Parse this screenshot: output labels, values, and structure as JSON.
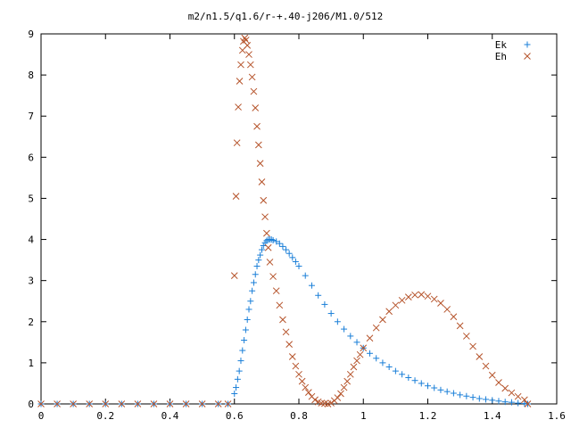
{
  "chart_data": {
    "type": "scatter",
    "title": "m2/n1.5/q1.6/r-+.40-j206/M1.0/512",
    "xlim": [
      0,
      1.6
    ],
    "ylim": [
      0,
      9
    ],
    "x_ticks": [
      "0",
      "0.2",
      "0.4",
      "0.6",
      "0.8",
      "1",
      "1.2",
      "1.4",
      "1.6"
    ],
    "y_ticks": [
      "0",
      "1",
      "2",
      "3",
      "4",
      "5",
      "6",
      "7",
      "8",
      "9"
    ],
    "grid": false,
    "legend_position": "top-right",
    "series": [
      {
        "name": "Ek",
        "marker": "plus",
        "color": "#1a7fd8",
        "points": [
          [
            0.0,
            0
          ],
          [
            0.05,
            0
          ],
          [
            0.1,
            0
          ],
          [
            0.15,
            0
          ],
          [
            0.2,
            0
          ],
          [
            0.25,
            0
          ],
          [
            0.3,
            0
          ],
          [
            0.35,
            0
          ],
          [
            0.4,
            0
          ],
          [
            0.45,
            0
          ],
          [
            0.5,
            0
          ],
          [
            0.55,
            0
          ],
          [
            0.58,
            0
          ],
          [
            0.6,
            0.25
          ],
          [
            0.605,
            0.4
          ],
          [
            0.61,
            0.6
          ],
          [
            0.615,
            0.8
          ],
          [
            0.62,
            1.05
          ],
          [
            0.625,
            1.3
          ],
          [
            0.63,
            1.55
          ],
          [
            0.635,
            1.8
          ],
          [
            0.64,
            2.05
          ],
          [
            0.645,
            2.3
          ],
          [
            0.65,
            2.5
          ],
          [
            0.655,
            2.75
          ],
          [
            0.66,
            2.95
          ],
          [
            0.665,
            3.15
          ],
          [
            0.67,
            3.35
          ],
          [
            0.675,
            3.5
          ],
          [
            0.68,
            3.62
          ],
          [
            0.685,
            3.75
          ],
          [
            0.69,
            3.85
          ],
          [
            0.695,
            3.92
          ],
          [
            0.7,
            3.97
          ],
          [
            0.705,
            4.0
          ],
          [
            0.71,
            4.0
          ],
          [
            0.715,
            4.0
          ],
          [
            0.72,
            3.98
          ],
          [
            0.73,
            3.95
          ],
          [
            0.74,
            3.9
          ],
          [
            0.75,
            3.83
          ],
          [
            0.76,
            3.75
          ],
          [
            0.77,
            3.66
          ],
          [
            0.78,
            3.56
          ],
          [
            0.79,
            3.46
          ],
          [
            0.8,
            3.35
          ],
          [
            0.82,
            3.12
          ],
          [
            0.84,
            2.88
          ],
          [
            0.86,
            2.64
          ],
          [
            0.88,
            2.42
          ],
          [
            0.9,
            2.2
          ],
          [
            0.92,
            2.0
          ],
          [
            0.94,
            1.82
          ],
          [
            0.96,
            1.65
          ],
          [
            0.98,
            1.5
          ],
          [
            1.0,
            1.36
          ],
          [
            1.02,
            1.23
          ],
          [
            1.04,
            1.11
          ],
          [
            1.06,
            1.0
          ],
          [
            1.08,
            0.9
          ],
          [
            1.1,
            0.8
          ],
          [
            1.12,
            0.72
          ],
          [
            1.14,
            0.64
          ],
          [
            1.16,
            0.57
          ],
          [
            1.18,
            0.5
          ],
          [
            1.2,
            0.44
          ],
          [
            1.22,
            0.39
          ],
          [
            1.24,
            0.34
          ],
          [
            1.26,
            0.3
          ],
          [
            1.28,
            0.26
          ],
          [
            1.3,
            0.22
          ],
          [
            1.32,
            0.19
          ],
          [
            1.34,
            0.16
          ],
          [
            1.36,
            0.13
          ],
          [
            1.38,
            0.11
          ],
          [
            1.4,
            0.09
          ],
          [
            1.42,
            0.07
          ],
          [
            1.44,
            0.05
          ],
          [
            1.46,
            0.04
          ],
          [
            1.48,
            0.02
          ],
          [
            1.5,
            0.01
          ],
          [
            1.51,
            0.0
          ]
        ]
      },
      {
        "name": "Eh",
        "marker": "cross",
        "color": "#b5532a",
        "points": [
          [
            0.0,
            0
          ],
          [
            0.05,
            0
          ],
          [
            0.1,
            0
          ],
          [
            0.15,
            0
          ],
          [
            0.2,
            0
          ],
          [
            0.25,
            0
          ],
          [
            0.3,
            0
          ],
          [
            0.35,
            0
          ],
          [
            0.4,
            0
          ],
          [
            0.45,
            0
          ],
          [
            0.5,
            0
          ],
          [
            0.55,
            0
          ],
          [
            0.58,
            0
          ],
          [
            0.6,
            3.12
          ],
          [
            0.605,
            5.05
          ],
          [
            0.608,
            6.35
          ],
          [
            0.612,
            7.22
          ],
          [
            0.616,
            7.85
          ],
          [
            0.62,
            8.25
          ],
          [
            0.625,
            8.6
          ],
          [
            0.628,
            8.82
          ],
          [
            0.632,
            8.9
          ],
          [
            0.636,
            8.85
          ],
          [
            0.64,
            8.72
          ],
          [
            0.645,
            8.5
          ],
          [
            0.65,
            8.25
          ],
          [
            0.655,
            7.95
          ],
          [
            0.66,
            7.6
          ],
          [
            0.665,
            7.2
          ],
          [
            0.67,
            6.75
          ],
          [
            0.675,
            6.3
          ],
          [
            0.68,
            5.85
          ],
          [
            0.685,
            5.4
          ],
          [
            0.69,
            4.95
          ],
          [
            0.695,
            4.55
          ],
          [
            0.7,
            4.15
          ],
          [
            0.705,
            3.8
          ],
          [
            0.71,
            3.45
          ],
          [
            0.72,
            3.1
          ],
          [
            0.73,
            2.75
          ],
          [
            0.74,
            2.4
          ],
          [
            0.75,
            2.05
          ],
          [
            0.76,
            1.75
          ],
          [
            0.77,
            1.45
          ],
          [
            0.78,
            1.15
          ],
          [
            0.79,
            0.92
          ],
          [
            0.8,
            0.72
          ],
          [
            0.81,
            0.55
          ],
          [
            0.82,
            0.4
          ],
          [
            0.83,
            0.28
          ],
          [
            0.84,
            0.18
          ],
          [
            0.85,
            0.1
          ],
          [
            0.86,
            0.05
          ],
          [
            0.87,
            0.02
          ],
          [
            0.88,
            0.01
          ],
          [
            0.89,
            0.0
          ],
          [
            0.9,
            0.02
          ],
          [
            0.91,
            0.08
          ],
          [
            0.92,
            0.15
          ],
          [
            0.93,
            0.25
          ],
          [
            0.94,
            0.4
          ],
          [
            0.95,
            0.55
          ],
          [
            0.96,
            0.72
          ],
          [
            0.97,
            0.9
          ],
          [
            0.98,
            1.05
          ],
          [
            0.99,
            1.2
          ],
          [
            1.0,
            1.36
          ],
          [
            1.02,
            1.6
          ],
          [
            1.04,
            1.85
          ],
          [
            1.06,
            2.05
          ],
          [
            1.08,
            2.25
          ],
          [
            1.1,
            2.4
          ],
          [
            1.12,
            2.52
          ],
          [
            1.14,
            2.6
          ],
          [
            1.16,
            2.65
          ],
          [
            1.18,
            2.66
          ],
          [
            1.2,
            2.62
          ],
          [
            1.22,
            2.55
          ],
          [
            1.24,
            2.45
          ],
          [
            1.26,
            2.3
          ],
          [
            1.28,
            2.12
          ],
          [
            1.3,
            1.9
          ],
          [
            1.32,
            1.65
          ],
          [
            1.34,
            1.4
          ],
          [
            1.36,
            1.15
          ],
          [
            1.38,
            0.92
          ],
          [
            1.4,
            0.7
          ],
          [
            1.42,
            0.52
          ],
          [
            1.44,
            0.38
          ],
          [
            1.46,
            0.27
          ],
          [
            1.48,
            0.18
          ],
          [
            1.5,
            0.1
          ],
          [
            1.51,
            0.0
          ]
        ]
      }
    ]
  }
}
